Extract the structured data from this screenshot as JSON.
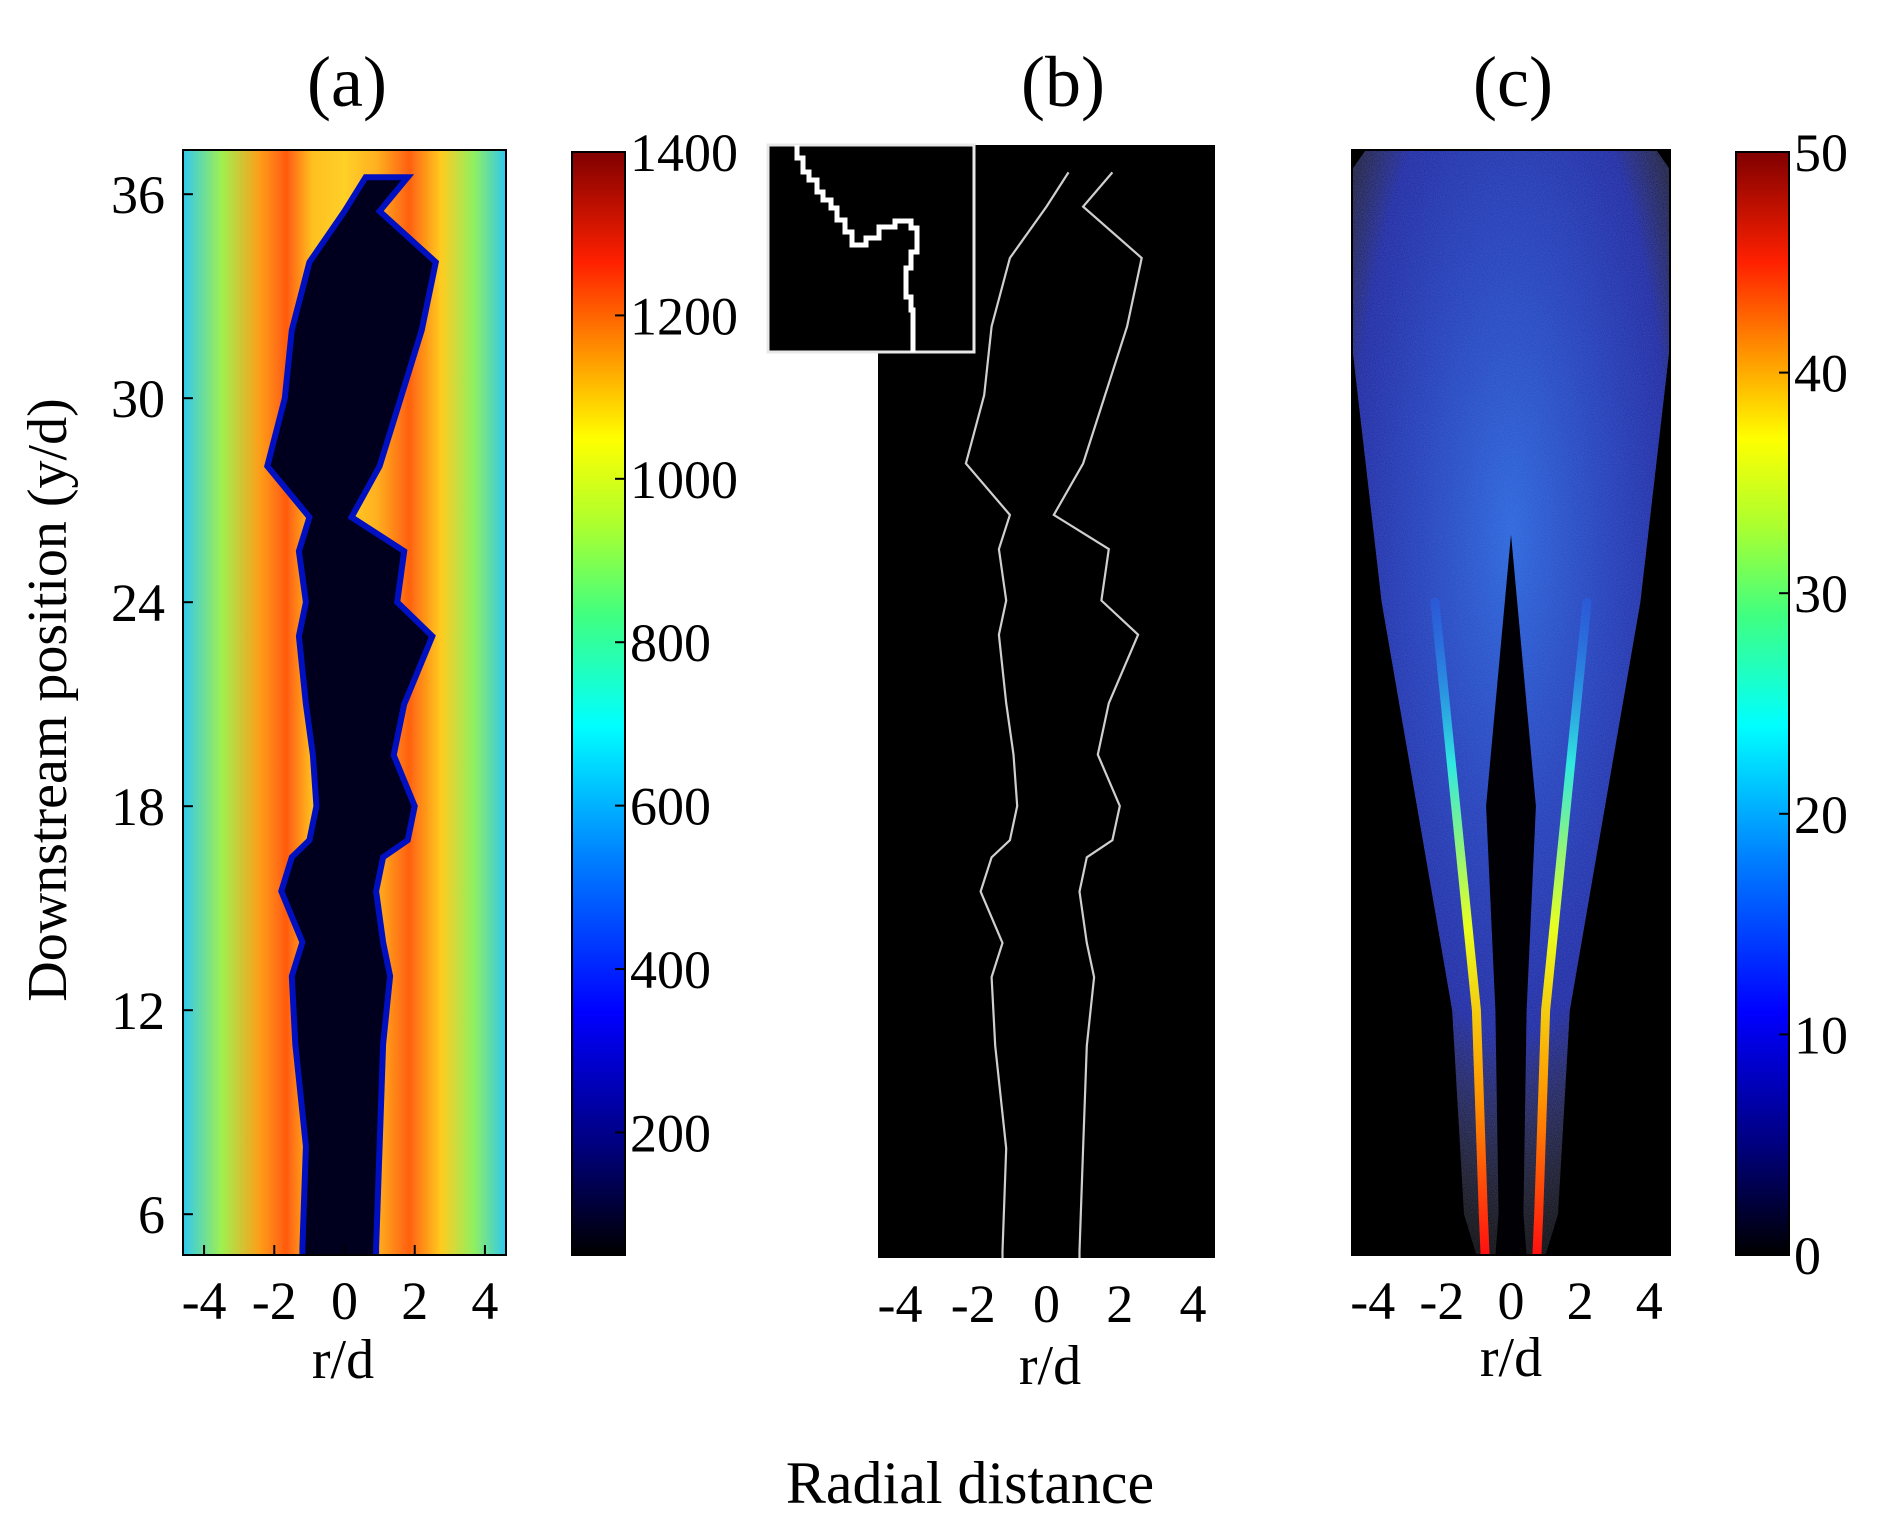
{
  "figure": {
    "shared_xlabel": "Radial distance",
    "shared_ylabel": "Downstream position (y/d)"
  },
  "chart_data": [
    {
      "type": "heatmap",
      "panel_label": "(a)",
      "title": "",
      "xlabel": "r/d",
      "ylabel": "Downstream position (y/d)",
      "xlim": [
        -4.6,
        4.6
      ],
      "ylim": [
        4.8,
        37.3
      ],
      "xticks": [
        -4,
        -2,
        0,
        2,
        4
      ],
      "yticks": [
        6,
        12,
        18,
        24,
        30,
        36
      ],
      "colorbar": {
        "min": 50,
        "max": 1400,
        "ticks": [
          200,
          400,
          600,
          800,
          1000,
          1200,
          1400
        ],
        "colormap": "jet"
      },
      "description_values": {
        "jet_core": [
          {
            "y": 5,
            "left": -1.2,
            "right": 0.9
          },
          {
            "y": 8,
            "left": -1.1,
            "right": 1.0
          },
          {
            "y": 11,
            "left": -1.4,
            "right": 1.1
          },
          {
            "y": 13,
            "left": -1.5,
            "right": 1.3
          },
          {
            "y": 14,
            "left": -1.2,
            "right": 1.1
          },
          {
            "y": 15.5,
            "left": -1.8,
            "right": 0.9
          },
          {
            "y": 16.5,
            "left": -1.5,
            "right": 1.1
          },
          {
            "y": 17,
            "left": -1.0,
            "right": 1.8
          },
          {
            "y": 18,
            "left": -0.8,
            "right": 2.0
          },
          {
            "y": 19.5,
            "left": -0.9,
            "right": 1.4
          },
          {
            "y": 21,
            "left": -1.1,
            "right": 1.7
          },
          {
            "y": 23,
            "left": -1.3,
            "right": 2.5
          },
          {
            "y": 24,
            "left": -1.1,
            "right": 1.5
          },
          {
            "y": 25.5,
            "left": -1.3,
            "right": 1.7
          },
          {
            "y": 26.5,
            "left": -1.0,
            "right": 0.2
          },
          {
            "y": 28,
            "left": -2.2,
            "right": 1.0
          },
          {
            "y": 30,
            "left": -1.7,
            "right": 1.6
          },
          {
            "y": 32,
            "left": -1.5,
            "right": 2.2
          },
          {
            "y": 34,
            "left": -1.0,
            "right": 2.6
          },
          {
            "y": 35.5,
            "left": 0.0,
            "right": 1.0
          },
          {
            "y": 36.5,
            "left": 0.6,
            "right": 1.8
          }
        ]
      }
    },
    {
      "type": "heatmap",
      "panel_label": "(b)",
      "title": "",
      "xlabel": "r/d",
      "xlim": [
        -4.6,
        4.6
      ],
      "ylim": [
        4.8,
        37.3
      ],
      "xticks": [
        -4,
        -2,
        0,
        2,
        4
      ],
      "description_values": {
        "edge_left": [
          [
            -1.2,
            5
          ],
          [
            -1.1,
            8
          ],
          [
            -1.4,
            11
          ],
          [
            -1.5,
            13
          ],
          [
            -1.2,
            14
          ],
          [
            -1.8,
            15.5
          ],
          [
            -1.5,
            16.5
          ],
          [
            -1.0,
            17
          ],
          [
            -0.8,
            18
          ],
          [
            -0.9,
            19.5
          ],
          [
            -1.1,
            21
          ],
          [
            -1.3,
            23
          ],
          [
            -1.1,
            24
          ],
          [
            -1.3,
            25.5
          ],
          [
            -1.0,
            26.5
          ],
          [
            -2.2,
            28
          ],
          [
            -1.7,
            30
          ],
          [
            -1.5,
            32
          ],
          [
            -1.0,
            34
          ],
          [
            0.0,
            35.5
          ],
          [
            0.6,
            36.5
          ]
        ],
        "edge_right": [
          [
            0.9,
            5
          ],
          [
            1.0,
            8
          ],
          [
            1.1,
            11
          ],
          [
            1.3,
            13
          ],
          [
            1.1,
            14
          ],
          [
            0.9,
            15.5
          ],
          [
            1.1,
            16.5
          ],
          [
            1.8,
            17
          ],
          [
            2.0,
            18
          ],
          [
            1.4,
            19.5
          ],
          [
            1.7,
            21
          ],
          [
            2.5,
            23
          ],
          [
            1.5,
            24
          ],
          [
            1.7,
            25.5
          ],
          [
            0.2,
            26.5
          ],
          [
            1.0,
            28
          ],
          [
            1.6,
            30
          ],
          [
            2.2,
            32
          ],
          [
            2.6,
            34
          ],
          [
            1.0,
            35.5
          ],
          [
            1.8,
            36.5
          ]
        ]
      }
    },
    {
      "type": "heatmap",
      "panel_label": "(c)",
      "title": "",
      "xlabel": "r/d",
      "xlim": [
        -4.6,
        4.6
      ],
      "ylim": [
        4.8,
        37.3
      ],
      "xticks": [
        -4,
        -2,
        0,
        2,
        4
      ],
      "colorbar": {
        "min": 0,
        "max": 50,
        "ticks": [
          0,
          10,
          20,
          30,
          40,
          50
        ],
        "colormap": "jet"
      },
      "description_values": {
        "peak_lines": [
          {
            "y": 6,
            "r": [
              -0.8,
              0.8
            ],
            "value": 48
          },
          {
            "y": 12,
            "r": [
              -1.0,
              1.0
            ],
            "value": 38
          },
          {
            "y": 18,
            "r": [
              -1.6,
              1.6
            ],
            "value": 22
          },
          {
            "y": 24,
            "r": [
              -2.2,
              2.2
            ],
            "value": 17
          },
          {
            "y": 30,
            "r": [
              -2.6,
              2.6
            ],
            "value": 13
          },
          {
            "y": 36,
            "r": [
              -3.0,
              3.0
            ],
            "value": 11
          }
        ]
      }
    }
  ]
}
